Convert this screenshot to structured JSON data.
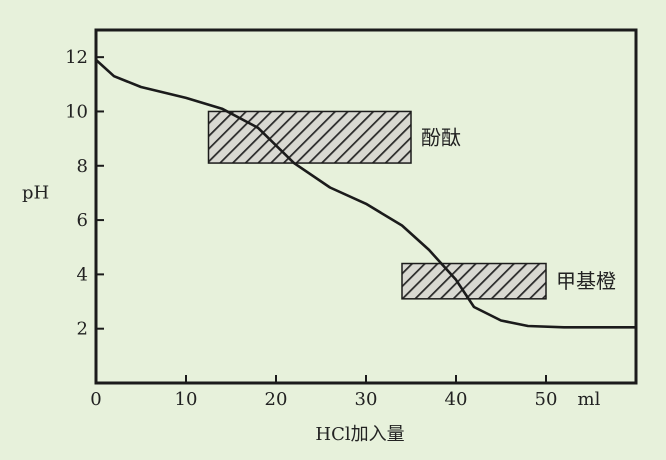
{
  "chart_data": {
    "type": "line",
    "xlabel": "HCl加入量",
    "x_unit": "ml",
    "ylabel": "pH",
    "xlim": [
      0,
      60
    ],
    "ylim": [
      0,
      13
    ],
    "x_ticks": [
      0,
      10,
      20,
      30,
      40,
      50
    ],
    "y_ticks": [
      2,
      4,
      6,
      8,
      10,
      12
    ],
    "grid": false,
    "series": [
      {
        "x": [
          0,
          2,
          5,
          10,
          14,
          18,
          22,
          26,
          30,
          34,
          37,
          40,
          42,
          45,
          48,
          52,
          56,
          60
        ],
        "y": [
          11.9,
          11.3,
          10.9,
          10.5,
          10.1,
          9.4,
          8.1,
          7.2,
          6.6,
          5.8,
          4.9,
          3.8,
          2.8,
          2.3,
          2.1,
          2.05,
          2.05,
          2.05
        ]
      }
    ],
    "indicator_ranges": [
      {
        "name": "酚酞",
        "x_range": [
          12.5,
          35
        ],
        "ph_range": [
          8.1,
          10.0
        ]
      },
      {
        "name": "甲基橙",
        "x_range": [
          34,
          50
        ],
        "ph_range": [
          3.1,
          4.4
        ]
      }
    ]
  }
}
